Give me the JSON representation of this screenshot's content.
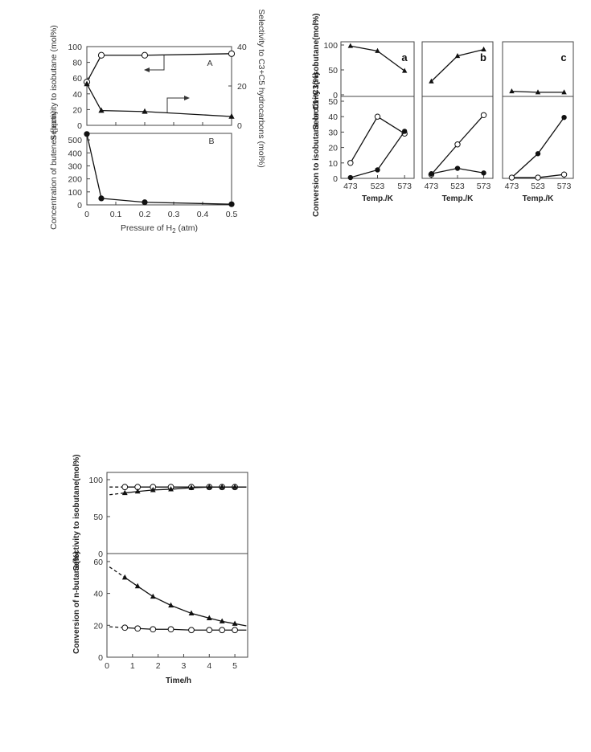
{
  "figures": {
    "left": {
      "y_title_top": "Selectivity to isobutane (mol%)",
      "y2_title_top": "Selectivity to C3+C5 hydrocarbons (mol%)",
      "y_title_bottom": "Concentration of butenes (ppm)",
      "x_title": "Pressure of H",
      "x_title_sub": "2",
      "x_title_unit": " (atm)",
      "panel_top": "A",
      "panel_bottom": "B"
    },
    "right": {
      "y_title_top": "Selectivity to isobutane(mol%)",
      "y_title_bottom": "Conversion to isobutane or C1−C3(%)",
      "x_title": "Temp./K",
      "panel_labels": [
        "a",
        "b",
        "c"
      ]
    },
    "bottom": {
      "y_title_top": "Selectivity to isobutane(mol%)",
      "y_title_bottom": "Conversion of n-butane(%)",
      "x_title": "Time/h"
    }
  },
  "chart_data": [
    {
      "type": "line",
      "title": "A",
      "xlabel": "Pressure of H2 (atm)",
      "ylabel": "Selectivity to isobutane (mol%)",
      "y2label": "Selectivity to C3+C5 hydrocarbons (mol%)",
      "xlim": [
        0,
        0.5
      ],
      "ylim": [
        0,
        100
      ],
      "y2lim": [
        0,
        40
      ],
      "x_ticks": [
        0,
        0.1,
        0.2,
        0.3,
        0.4,
        0.5
      ],
      "y_ticks": [
        0,
        20,
        40,
        60,
        80,
        100
      ],
      "y2_ticks": [
        0,
        20,
        40
      ],
      "series": [
        {
          "marker": "open-circle",
          "axis": "left",
          "x": [
            0,
            0.05,
            0.2,
            0.5
          ],
          "y": [
            55,
            89,
            89,
            91
          ]
        },
        {
          "marker": "filled-triangle",
          "axis": "right",
          "x": [
            0,
            0.05,
            0.2,
            0.5
          ],
          "y": [
            21,
            7.5,
            7,
            4.5
          ]
        }
      ]
    },
    {
      "type": "line",
      "title": "B",
      "xlabel": "Pressure of H2 (atm)",
      "ylabel": "Concentration of butenes (ppm)",
      "xlim": [
        0,
        0.5
      ],
      "ylim": [
        0,
        550
      ],
      "x_ticks": [
        0,
        0.1,
        0.2,
        0.3,
        0.4,
        0.5
      ],
      "y_ticks": [
        0,
        100,
        200,
        300,
        400,
        500
      ],
      "series": [
        {
          "marker": "filled-circle",
          "x": [
            0,
            0.05,
            0.2,
            0.5
          ],
          "y": [
            545,
            50,
            20,
            5
          ]
        }
      ]
    },
    {
      "type": "line",
      "title": "a",
      "xlabel": "Temp./K",
      "ylim_top": [
        0,
        100
      ],
      "ylim_bottom": [
        0,
        50
      ],
      "x_ticks": [
        473,
        523,
        573
      ],
      "top_ticks": [
        0,
        50,
        100
      ],
      "bottom_ticks": [
        0,
        10,
        20,
        30,
        40,
        50
      ],
      "series": [
        {
          "marker": "filled-triangle",
          "panel": "top",
          "x": [
            473,
            523,
            573
          ],
          "y": [
            98,
            88,
            48
          ]
        },
        {
          "marker": "open-circle",
          "panel": "bottom",
          "x": [
            473,
            523,
            573
          ],
          "y": [
            10,
            40,
            29
          ]
        },
        {
          "marker": "filled-circle",
          "panel": "bottom",
          "x": [
            473,
            523,
            573
          ],
          "y": [
            0.5,
            5.5,
            30.5
          ]
        }
      ]
    },
    {
      "type": "line",
      "title": "b",
      "xlabel": "Temp./K",
      "ylim_top": [
        0,
        100
      ],
      "ylim_bottom": [
        0,
        50
      ],
      "x_ticks": [
        473,
        523,
        573
      ],
      "series": [
        {
          "marker": "filled-triangle",
          "panel": "top",
          "x": [
            473,
            523,
            573
          ],
          "y": [
            27,
            78,
            91
          ]
        },
        {
          "marker": "open-circle",
          "panel": "bottom",
          "x": [
            473,
            523,
            573
          ],
          "y": [
            2.5,
            22,
            41
          ]
        },
        {
          "marker": "filled-circle",
          "panel": "bottom",
          "x": [
            473,
            523,
            573
          ],
          "y": [
            3,
            6.5,
            3.5
          ]
        }
      ]
    },
    {
      "type": "line",
      "title": "c",
      "xlabel": "Temp./K",
      "ylim_top": [
        0,
        100
      ],
      "ylim_bottom": [
        0,
        50
      ],
      "x_ticks": [
        473,
        523,
        573
      ],
      "series": [
        {
          "marker": "filled-triangle",
          "panel": "top",
          "x": [
            473,
            523,
            573
          ],
          "y": [
            7,
            5,
            5
          ]
        },
        {
          "marker": "filled-circle",
          "panel": "bottom",
          "x": [
            473,
            523,
            573
          ],
          "y": [
            0.5,
            16,
            39.5
          ]
        },
        {
          "marker": "open-circle",
          "panel": "bottom",
          "x": [
            473,
            523,
            573
          ],
          "y": [
            0.5,
            0.5,
            2.5
          ]
        }
      ]
    },
    {
      "type": "line",
      "xlabel": "Time/h",
      "ylabel_top": "Selectivity to isobutane(mol%)",
      "ylabel_bottom": "Conversion of n-butane(%)",
      "xlim": [
        0,
        5.5
      ],
      "ylim_top": [
        0,
        100
      ],
      "ylim_bottom": [
        0,
        65
      ],
      "x_ticks": [
        0,
        1,
        2,
        3,
        4,
        5
      ],
      "top_ticks": [
        0,
        50,
        100
      ],
      "bottom_ticks": [
        0,
        20,
        40,
        60
      ],
      "series": [
        {
          "marker": "open-circle",
          "panel": "top",
          "x": [
            0.7,
            1.2,
            1.8,
            2.5,
            3.3,
            4.0,
            4.5,
            5.0
          ],
          "y": [
            90,
            90,
            90,
            90,
            90,
            90,
            90,
            90
          ]
        },
        {
          "marker": "filled-triangle",
          "panel": "top",
          "x": [
            0.7,
            1.2,
            1.8,
            2.5,
            3.3,
            4.0,
            4.5,
            5.0
          ],
          "y": [
            82,
            84,
            86,
            87,
            89,
            90,
            90,
            90
          ]
        },
        {
          "marker": "filled-triangle",
          "panel": "bottom",
          "x": [
            0.7,
            1.2,
            1.8,
            2.5,
            3.3,
            4.0,
            4.5,
            5.0
          ],
          "y": [
            50,
            44.5,
            38,
            32.5,
            27.5,
            24.5,
            22.5,
            21
          ]
        },
        {
          "marker": "open-circle",
          "panel": "bottom",
          "x": [
            0.7,
            1.2,
            1.8,
            2.5,
            3.3,
            4.0,
            4.5,
            5.0
          ],
          "y": [
            18.5,
            18,
            17.5,
            17.5,
            17,
            17,
            17,
            17
          ]
        }
      ]
    }
  ]
}
